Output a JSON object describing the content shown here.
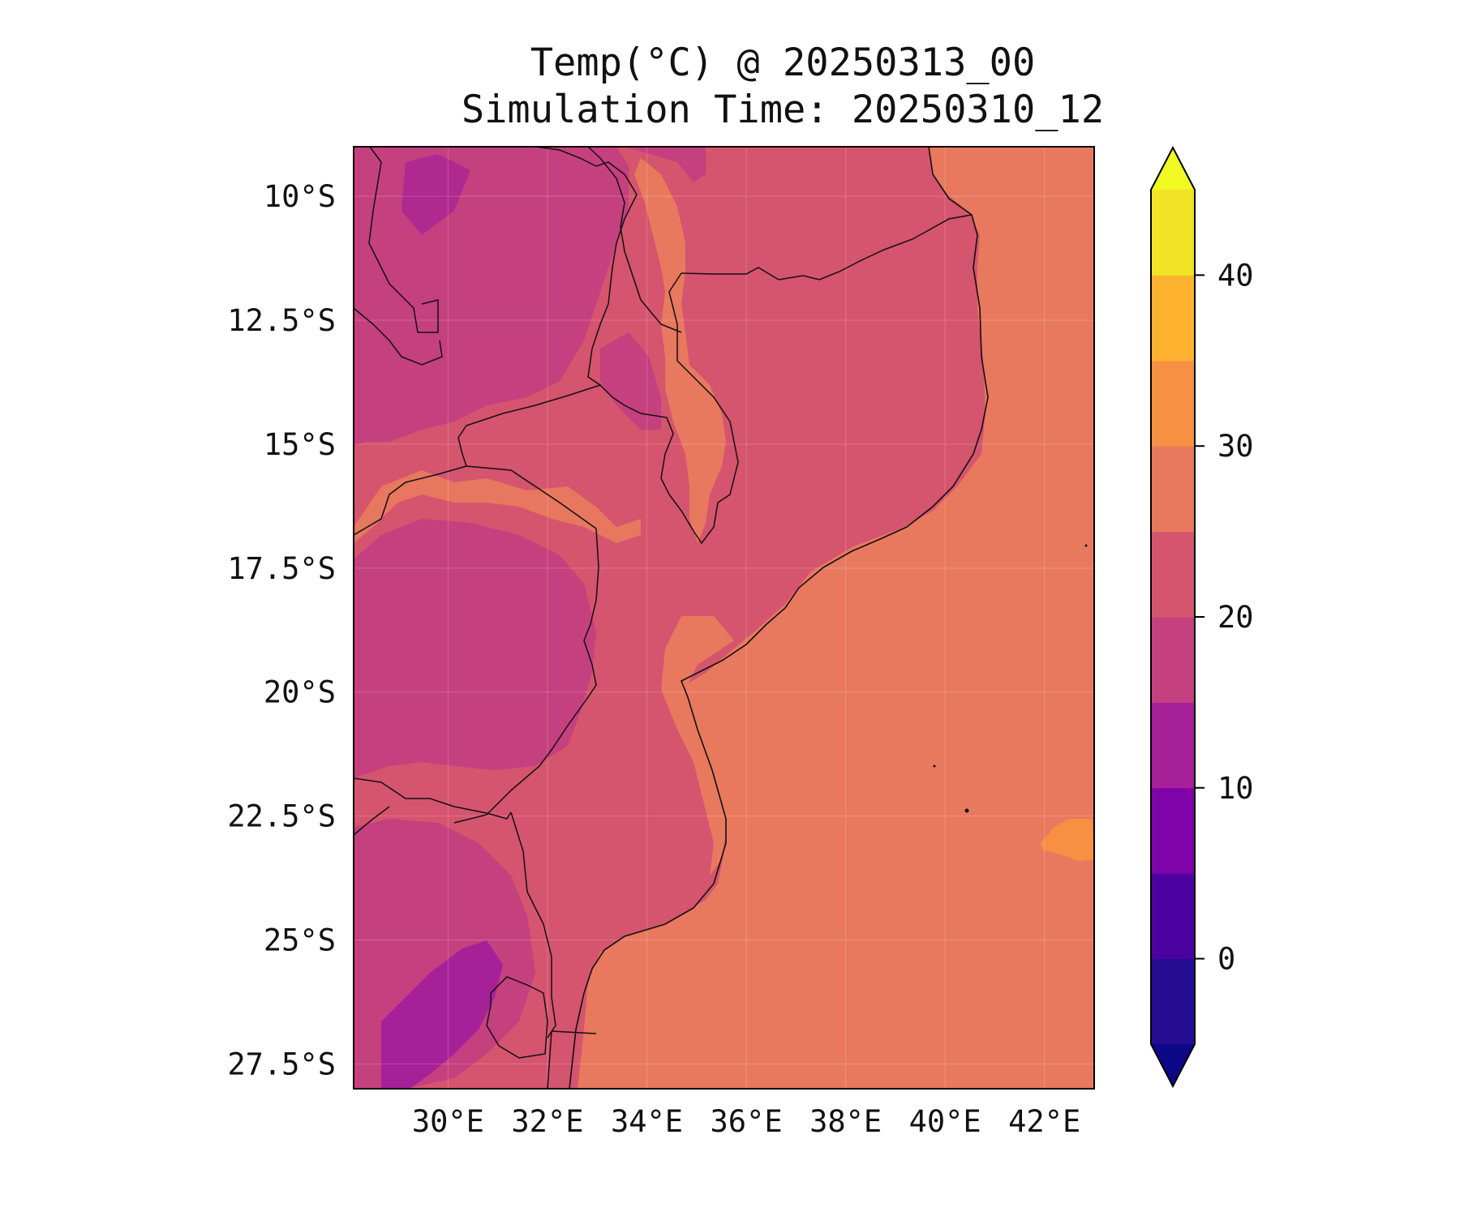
{
  "figure": {
    "title": "Temp(°C) @ 20250313_00",
    "subtitle": "Simulation Time: 20250310_12"
  },
  "map": {
    "region": "Mozambique and surrounding area",
    "projection": "PlateCarree",
    "lon_range": [
      28.1,
      43.0
    ],
    "lat_range": [
      -28.0,
      -9.0
    ],
    "x_ticks": [
      "30°E",
      "32°E",
      "34°E",
      "36°E",
      "38°E",
      "40°E",
      "42°E"
    ],
    "y_ticks": [
      "10°S",
      "12.5°S",
      "15°S",
      "17.5°S",
      "20°S",
      "22.5°S",
      "25°S",
      "27.5°S"
    ],
    "x_tick_values": [
      30,
      32,
      34,
      36,
      38,
      40,
      42
    ],
    "y_tick_values": [
      -10,
      -12.5,
      -15,
      -17.5,
      -20,
      -22.5,
      -25,
      -27.5
    ],
    "gridlines": true,
    "coastlines": true,
    "borders": true
  },
  "colorbar": {
    "cmap": "plasma",
    "extend": "both",
    "levels": [
      -5,
      0,
      5,
      10,
      15,
      20,
      25,
      30,
      35,
      40,
      45
    ],
    "tick_labels": [
      "0",
      "10",
      "20",
      "30",
      "40"
    ],
    "tick_values": [
      0,
      10,
      20,
      30,
      40
    ],
    "band_colors": [
      "#240d91",
      "#4c02a1",
      "#7e03a8",
      "#a62098",
      "#c5407e",
      "#d5546e",
      "#e8795e",
      "#f79042",
      "#fdb32f",
      "#f0e424"
    ],
    "under_color": "#0d0887",
    "over_color": "#f0f921"
  },
  "chart_data": {
    "type": "heatmap",
    "title": "Temp(°C) @ 20250313_00",
    "subtitle": "Simulation Time: 20250310_12",
    "variable": "Temp(°C)",
    "xlim": [
      28.1,
      43.0
    ],
    "ylim": [
      -28.0,
      -9.0
    ],
    "field_regions": [
      {
        "region": "Indian Ocean / Mozambique Channel",
        "band": "25-30"
      },
      {
        "region": "Ocean patch near 42.5°E 23.5°S",
        "band": "30-35"
      },
      {
        "region": "Mozambique interior & Malawi lowlands",
        "band": "20-25"
      },
      {
        "region": "Zambia / Zimbabwe plateau",
        "band": "15-20"
      },
      {
        "region": "Malawi–Tanzania highlands",
        "band": "15-20"
      },
      {
        "region": "South Africa / Eswatini highlands",
        "band": "10-15"
      },
      {
        "region": "Zambezi valley and Lake Malawi",
        "band": "25-30"
      }
    ]
  }
}
